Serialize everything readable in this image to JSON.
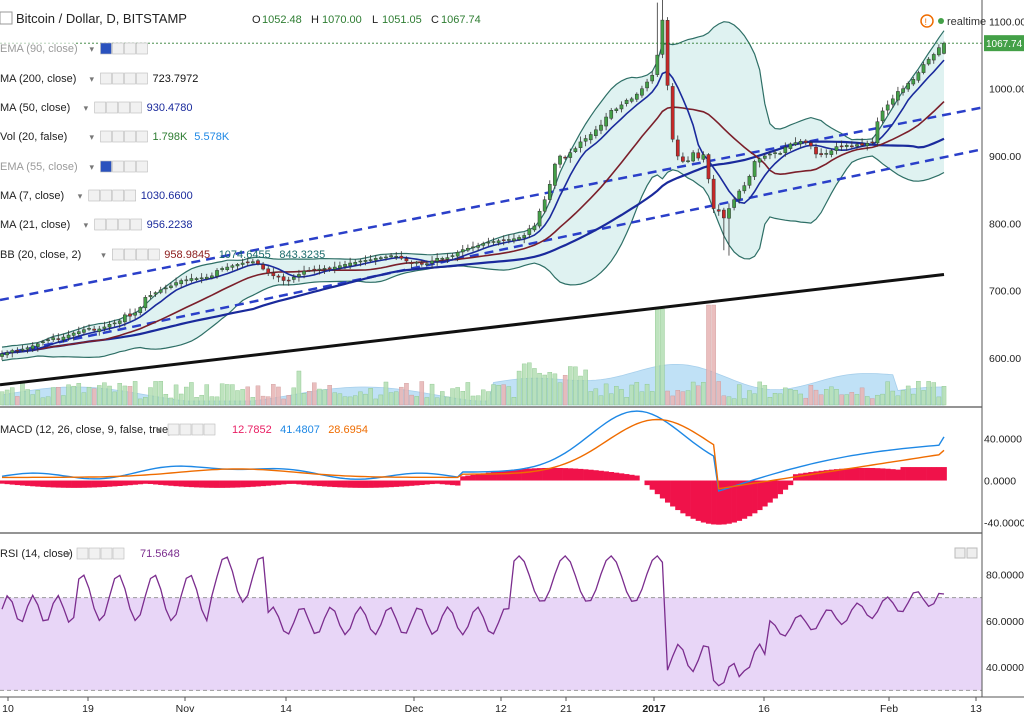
{
  "title": "Bitcoin / Dollar, D, BITSTAMP",
  "ohlc_header": {
    "o_label": "O",
    "o_value": "1052.48",
    "h_label": "H",
    "h_value": "1070.00",
    "l_label": "L",
    "l_value": "1051.05",
    "c_label": "C",
    "c_value": "1067.74"
  },
  "realtime_label": "realtime",
  "last_price": "1067.74",
  "indicators": [
    {
      "label": "EMA (90, close)",
      "values": [],
      "dimmed": true
    },
    {
      "label": "MA (200, close)",
      "values": [
        {
          "text": "723.7972",
          "color": "#111111"
        }
      ]
    },
    {
      "label": "MA (50, close)",
      "values": [
        {
          "text": "930.4780",
          "color": "#1a2a9c"
        }
      ]
    },
    {
      "label": "Vol (20, false)",
      "values": [
        {
          "text": "1.798K",
          "color": "#2e7d32"
        },
        {
          "text": "5.578K",
          "color": "#1e88e5"
        }
      ]
    },
    {
      "label": "EMA (55, close)",
      "values": [],
      "dimmed": true
    },
    {
      "label": "MA (7, close)",
      "values": [
        {
          "text": "1030.6600",
          "color": "#1a2a9c"
        }
      ]
    },
    {
      "label": "MA (21, close)",
      "values": [
        {
          "text": "956.2238",
          "color": "#1a2a9c"
        }
      ]
    },
    {
      "label": "BB (20, close, 2)",
      "values": [
        {
          "text": "958.9845",
          "color": "#8b1a1a"
        },
        {
          "text": "1074.6455",
          "color": "#1a6b6b"
        },
        {
          "text": "843.3235",
          "color": "#1a6b6b"
        }
      ]
    }
  ],
  "macd_label": "MACD (12, 26, close, 9, false, true)",
  "macd_values": [
    {
      "text": "12.7852",
      "color": "#e91e63"
    },
    {
      "text": "41.4807",
      "color": "#1e88e5"
    },
    {
      "text": "28.6954",
      "color": "#ef6c00"
    }
  ],
  "rsi_label": "RSI (14, close)",
  "rsi_value": "71.5648",
  "colors": {
    "up": "#43a047",
    "down": "#c62828",
    "bb_line": "#2e6f66",
    "bb_fill": "#dff2f1",
    "ma_dark": "#1a2a9c",
    "ma21": "#7b1f2a",
    "ma200": "#111111",
    "trend": "#2a3fc9",
    "macd": "#1e88e5",
    "signal": "#ef6c00",
    "hist": "#f0124a",
    "rsi": "#7b2d8e",
    "rsi_band": "#e8d6f7",
    "vol_area": "#8ec9ef"
  },
  "chart_data": {
    "type": "candlestick",
    "instrument": "Bitcoin / Dollar",
    "interval": "D",
    "exchange": "BITSTAMP",
    "x_tick_labels": [
      "10",
      "19",
      "Nov",
      "14",
      "Dec",
      "12",
      "21",
      "2017",
      "16",
      "Feb",
      "13"
    ],
    "price_axis": {
      "ticks": [
        "1100.00",
        "1000.00",
        "900.00",
        "800.00",
        "700.00",
        "600.00"
      ],
      "range": [
        530,
        1120
      ]
    },
    "macd_axis": {
      "ticks": [
        "40.0000",
        "0.0000",
        "-40.0000"
      ],
      "range": [
        -48,
        68
      ]
    },
    "rsi_axis": {
      "ticks": [
        "80.0000",
        "60.0000",
        "40.0000"
      ],
      "range": [
        28,
        97
      ],
      "band": [
        30,
        70
      ]
    },
    "price_closes": [
      606,
      608,
      611,
      610,
      613,
      615,
      618,
      621,
      624,
      627,
      630,
      628,
      631,
      634,
      637,
      639,
      642,
      644,
      641,
      643,
      646,
      650,
      652,
      655,
      664,
      662,
      667,
      675,
      690,
      693,
      697,
      701,
      704,
      707,
      712,
      715,
      716,
      718,
      718,
      719,
      720,
      722,
      730,
      733,
      735,
      737,
      739,
      741,
      742,
      743,
      740,
      732,
      726,
      722,
      720,
      715,
      715,
      720,
      724,
      729,
      730,
      731,
      732,
      733,
      732,
      735,
      737,
      739,
      741,
      742,
      744,
      745,
      746,
      748,
      749,
      750,
      752,
      751,
      748,
      744,
      740,
      742,
      739,
      740,
      744,
      748,
      748,
      749,
      752,
      757,
      761,
      763,
      765,
      767,
      770,
      772,
      773,
      774,
      775,
      776,
      777,
      779,
      782,
      792,
      796,
      818,
      835,
      858,
      888,
      900,
      898,
      905,
      911,
      921,
      926,
      932,
      939,
      946,
      958,
      968,
      970,
      976,
      983,
      985,
      992,
      1000,
      1010,
      1020,
      1050,
      1102,
      1005,
      925,
      900,
      892,
      893,
      905,
      897,
      902,
      866,
      822,
      818,
      808,
      822,
      835,
      848,
      856,
      870,
      892,
      896,
      900,
      903,
      905,
      904,
      913,
      918,
      920,
      922,
      920,
      915,
      903,
      902,
      904,
      908,
      914,
      915,
      916,
      915,
      917,
      916,
      919,
      920,
      951,
      967,
      976,
      985,
      996,
      1000,
      1008,
      1014,
      1024,
      1036,
      1044,
      1051,
      1061,
      1067.74
    ],
    "volume_spikes": [
      {
        "x": "Nov",
        "note": "red bar"
      },
      {
        "x": "2017",
        "note": "tall red bars"
      }
    ],
    "macd_series": [
      "MACD",
      "Signal",
      "Histogram"
    ],
    "rsi_last": 71.5648
  }
}
